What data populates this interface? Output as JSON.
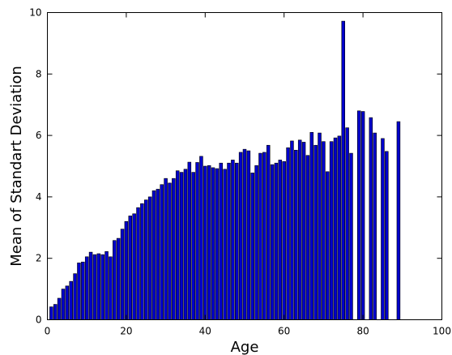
{
  "chart_data": {
    "type": "bar",
    "xlabel": "Age",
    "ylabel": "Mean of Standart Deviation",
    "xlim": [
      0,
      100
    ],
    "ylim": [
      0,
      10
    ],
    "xticks": [
      "0",
      "20",
      "40",
      "60",
      "80",
      "100"
    ],
    "yticks": [
      "0",
      "2",
      "4",
      "6",
      "8",
      "10"
    ],
    "grid": false,
    "bar_color": "#0000cc",
    "bar_edge_color": "#000000",
    "x": [
      1,
      2,
      3,
      4,
      5,
      6,
      7,
      8,
      9,
      10,
      11,
      12,
      13,
      14,
      15,
      16,
      17,
      18,
      19,
      20,
      21,
      22,
      23,
      24,
      25,
      26,
      27,
      28,
      29,
      30,
      31,
      32,
      33,
      34,
      35,
      36,
      37,
      38,
      39,
      40,
      41,
      42,
      43,
      44,
      45,
      46,
      47,
      48,
      49,
      50,
      51,
      52,
      53,
      54,
      55,
      56,
      57,
      58,
      59,
      60,
      61,
      62,
      63,
      64,
      65,
      66,
      67,
      68,
      69,
      70,
      71,
      72,
      73,
      74,
      75,
      76,
      77,
      79,
      80,
      82,
      83,
      85,
      86,
      89
    ],
    "values": [
      0.42,
      0.5,
      0.7,
      1.0,
      1.1,
      1.25,
      1.5,
      1.85,
      1.88,
      2.05,
      2.2,
      2.12,
      2.15,
      2.12,
      2.22,
      2.05,
      2.58,
      2.65,
      2.95,
      3.2,
      3.38,
      3.45,
      3.65,
      3.78,
      3.9,
      4.0,
      4.2,
      4.25,
      4.4,
      4.6,
      4.45,
      4.6,
      4.85,
      4.8,
      4.9,
      5.13,
      4.8,
      5.12,
      5.32,
      5.0,
      5.02,
      4.95,
      4.92,
      5.1,
      4.9,
      5.1,
      5.2,
      5.1,
      5.45,
      5.55,
      5.5,
      4.78,
      5.02,
      5.42,
      5.45,
      5.68,
      5.05,
      5.1,
      5.2,
      5.15,
      5.6,
      5.82,
      5.52,
      5.85,
      5.78,
      5.35,
      6.1,
      5.68,
      6.08,
      5.8,
      4.82,
      5.8,
      5.92,
      5.98,
      9.72,
      6.25,
      5.42,
      6.8,
      6.78,
      6.58,
      6.08,
      5.9,
      5.48,
      6.45
    ]
  }
}
